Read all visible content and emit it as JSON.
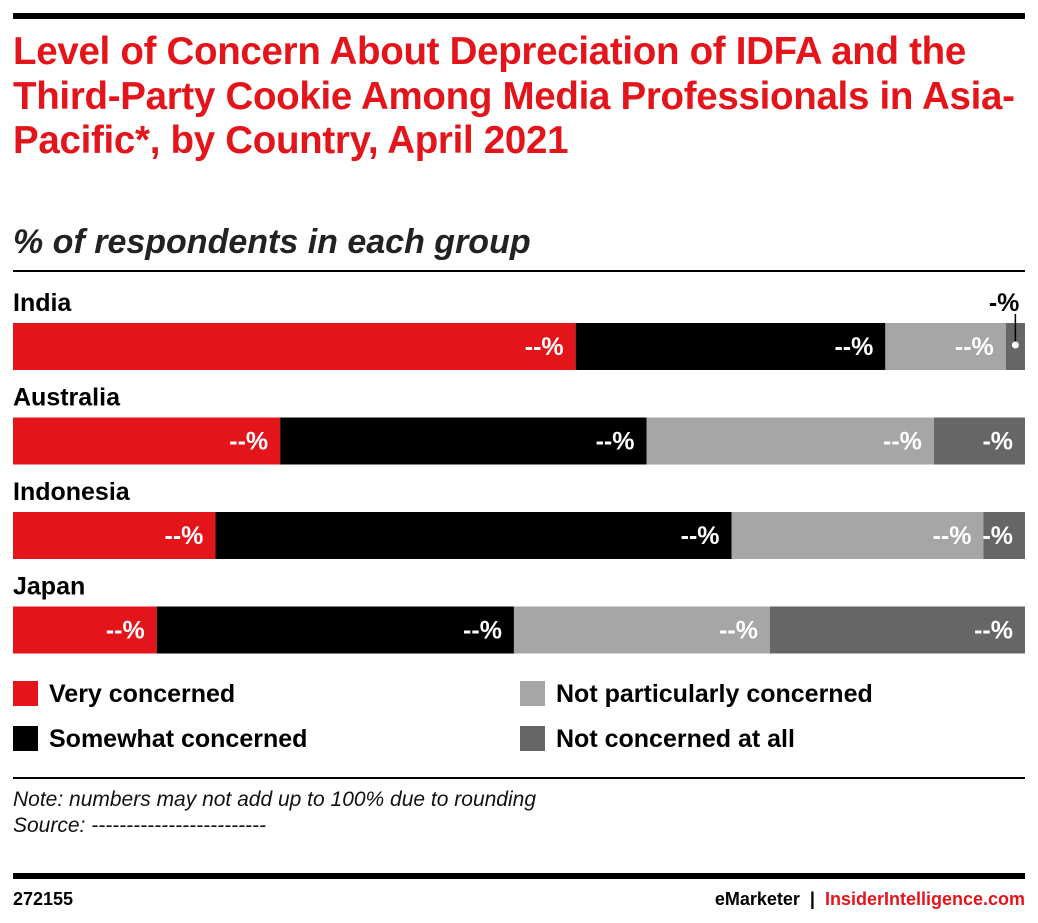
{
  "title": "Level of Concern About Depreciation of IDFA and the Third-Party Cookie Among Media Professionals in Asia-Pacific*, by Country, April 2021",
  "subtitle": "% of respondents in each group",
  "colors": {
    "very_concerned": "#e3151b",
    "somewhat_concerned": "#000000",
    "not_particularly_concerned": "#a6a6a6",
    "not_concerned_at_all": "#666666"
  },
  "chart_data": {
    "type": "bar",
    "orientation": "horizontal",
    "stacked": true,
    "categories": [
      "India",
      "Australia",
      "Indonesia",
      "Japan"
    ],
    "series": [
      {
        "name": "Very concerned",
        "color": "#e3151b",
        "values": [
          55.6,
          26.4,
          20.0,
          14.2
        ],
        "labels": [
          "--%",
          "--%",
          "--%",
          "--%"
        ]
      },
      {
        "name": "Somewhat concerned",
        "color": "#000000",
        "values": [
          30.6,
          36.2,
          51.0,
          35.3
        ],
        "labels": [
          "--%",
          "--%",
          "--%",
          "--%"
        ]
      },
      {
        "name": "Not particularly concerned",
        "color": "#a6a6a6",
        "values": [
          11.9,
          28.4,
          24.9,
          25.3
        ],
        "labels": [
          "--%",
          "--%",
          "--%",
          "--%"
        ]
      },
      {
        "name": "Not concerned at all",
        "color": "#666666",
        "values": [
          1.9,
          9.0,
          4.1,
          25.2
        ],
        "labels": [
          "-%",
          "-%",
          "-%",
          "--%"
        ]
      }
    ],
    "xlim": [
      0,
      100
    ],
    "grid": false,
    "legend": "bottom"
  },
  "legend": [
    {
      "label": "Very concerned",
      "color": "#e3151b"
    },
    {
      "label": "Not particularly concerned",
      "color": "#a6a6a6"
    },
    {
      "label": "Somewhat concerned",
      "color": "#000000"
    },
    {
      "label": "Not concerned at all",
      "color": "#666666"
    }
  ],
  "note": "Note: numbers may not add up to 100% due to rounding",
  "source": "Source: -------------------------",
  "footer": {
    "id": "272155",
    "brand": "eMarketer",
    "separator": "|",
    "brand2": "InsiderIntelligence.com"
  }
}
